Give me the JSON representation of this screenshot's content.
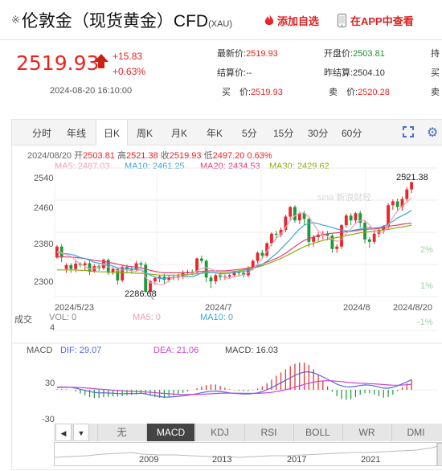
{
  "header": {
    "marker": "※",
    "title": "伦敦金（现货黄金）CFD",
    "symbol": "(XAU)",
    "favorite_label": "添加自选",
    "app_label": "在APP中查看"
  },
  "quote": {
    "price": "2519.93",
    "change": "+15.83",
    "change_pct": "+0.63%",
    "time": "2024-08-20 16:10:00",
    "fields": [
      {
        "label": "最新价:",
        "value": "2519.93"
      },
      {
        "label": "开盘价:",
        "value": "2503.81"
      },
      {
        "label": "持",
        "value": ""
      },
      {
        "label": "结算价:",
        "value": "--"
      },
      {
        "label": "昨结算:",
        "value": "2504.10"
      },
      {
        "label": "买",
        "value": ""
      },
      {
        "label": "买　价:",
        "value": "2519.93"
      },
      {
        "label": "卖　价:",
        "value": "2520.28"
      },
      {
        "label": "卖",
        "value": ""
      }
    ]
  },
  "tabs": [
    "分时",
    "年线",
    "日K",
    "周K",
    "月K",
    "年K",
    "5分",
    "15分",
    "30分",
    "60分"
  ],
  "active_tab": "日K",
  "info_bar": {
    "date": "2024/08/20",
    "open_label": "开",
    "open": "2503.81",
    "high_label": "高",
    "high": "2521.38",
    "close_label": "收",
    "close": "2519.93",
    "low_label": "低",
    "low": "2497.20",
    "pct": "0.63%"
  },
  "ma": [
    {
      "label": "MA5:",
      "value": "2487.03",
      "color": "#f0a0b4"
    },
    {
      "label": "MA10:",
      "value": "2461.25",
      "color": "#3aa8d8"
    },
    {
      "label": "MA20:",
      "value": "2434.53",
      "color": "#e0407a"
    },
    {
      "label": "MA30:",
      "value": "2429.62",
      "color": "#8faa10"
    }
  ],
  "price_axis": [
    "2540",
    "2460",
    "2380",
    "2300"
  ],
  "pct_axis": [
    "2%",
    "1%",
    "-1%"
  ],
  "x_axis": [
    "2024/5/23",
    "2024/7",
    "2024/8",
    "2024/8/20"
  ],
  "high_marker": "2521.38",
  "low_marker": "2286.68",
  "watermark": "sina 新浪财经",
  "volume": {
    "title": "成交",
    "axis_value": "4",
    "vol": "VOL: 0",
    "ma5": "MA5: 0",
    "ma10": "MA10: 0"
  },
  "macd": {
    "title": "MACD",
    "dif": "DIF: 29.07",
    "dea": "DEA: 21.06",
    "macd": "MACD: 16.03",
    "axis_top": "30",
    "axis_bottom": "-30",
    "dif_color": "#5566dd",
    "dea_color": "#cc44cc"
  },
  "indicator_prev": "◀",
  "indicator_next": "▼",
  "indicators": [
    "无",
    "MACD",
    "KDJ",
    "RSI",
    "BOLL",
    "WR",
    "DMI"
  ],
  "active_indicator": "MACD",
  "navigator_years": [
    "2009",
    "2013",
    "2017",
    "2021"
  ],
  "colors": {
    "up": "#e8262a",
    "down": "#1a9a38",
    "accent": "#4a6fc4"
  },
  "chart_data": {
    "type": "candlestick",
    "candles": [
      [
        2362,
        2385,
        2360,
        2388
      ],
      [
        2385,
        2362,
        2352,
        2390
      ],
      [
        2338,
        2346,
        2330,
        2350
      ],
      [
        2346,
        2338,
        2330,
        2350
      ],
      [
        2338,
        2349,
        2331,
        2355
      ],
      [
        2349,
        2346,
        2341,
        2352
      ],
      [
        2346,
        2350,
        2335,
        2355
      ],
      [
        2350,
        2332,
        2325,
        2355
      ],
      [
        2332,
        2344,
        2330,
        2348
      ],
      [
        2344,
        2340,
        2334,
        2348
      ],
      [
        2340,
        2357,
        2336,
        2360
      ],
      [
        2357,
        2330,
        2326,
        2360
      ],
      [
        2330,
        2338,
        2326,
        2342
      ],
      [
        2338,
        2314,
        2305,
        2340
      ],
      [
        2314,
        2342,
        2310,
        2345
      ],
      [
        2342,
        2337,
        2330,
        2347
      ],
      [
        2337,
        2336,
        2328,
        2342
      ],
      [
        2336,
        2350,
        2333,
        2355
      ],
      [
        2350,
        2347,
        2340,
        2354
      ],
      [
        2347,
        2290,
        2287,
        2352
      ],
      [
        2290,
        2312,
        2286,
        2316
      ],
      [
        2312,
        2319,
        2305,
        2322
      ],
      [
        2319,
        2322,
        2310,
        2325
      ],
      [
        2322,
        2315,
        2305,
        2328
      ],
      [
        2315,
        2321,
        2310,
        2325
      ],
      [
        2321,
        2320,
        2314,
        2326
      ],
      [
        2320,
        2323,
        2314,
        2328
      ],
      [
        2323,
        2330,
        2317,
        2335
      ],
      [
        2330,
        2332,
        2325,
        2336
      ],
      [
        2332,
        2331,
        2325,
        2337
      ],
      [
        2331,
        2360,
        2328,
        2362
      ],
      [
        2360,
        2355,
        2350,
        2366
      ],
      [
        2355,
        2320,
        2310,
        2358
      ],
      [
        2320,
        2312,
        2298,
        2325
      ],
      [
        2312,
        2325,
        2306,
        2328
      ],
      [
        2325,
        2321,
        2314,
        2329
      ],
      [
        2321,
        2322,
        2315,
        2326
      ],
      [
        2322,
        2325,
        2317,
        2328
      ],
      [
        2325,
        2331,
        2321,
        2334
      ],
      [
        2331,
        2330,
        2322,
        2334
      ],
      [
        2330,
        2325,
        2320,
        2336
      ],
      [
        2325,
        2340,
        2320,
        2344
      ],
      [
        2340,
        2355,
        2335,
        2358
      ],
      [
        2355,
        2372,
        2350,
        2375
      ],
      [
        2372,
        2366,
        2360,
        2378
      ],
      [
        2366,
        2392,
        2362,
        2394
      ],
      [
        2392,
        2412,
        2386,
        2415
      ],
      [
        2412,
        2410,
        2400,
        2418
      ],
      [
        2410,
        2420,
        2405,
        2425
      ],
      [
        2420,
        2448,
        2415,
        2452
      ],
      [
        2448,
        2468,
        2440,
        2470
      ],
      [
        2468,
        2440,
        2435,
        2472
      ],
      [
        2440,
        2455,
        2432,
        2458
      ],
      [
        2455,
        2443,
        2430,
        2460
      ],
      [
        2443,
        2395,
        2384,
        2448
      ],
      [
        2395,
        2405,
        2385,
        2410
      ],
      [
        2405,
        2410,
        2396,
        2415
      ],
      [
        2410,
        2412,
        2400,
        2418
      ],
      [
        2412,
        2408,
        2398,
        2418
      ],
      [
        2408,
        2380,
        2372,
        2412
      ],
      [
        2380,
        2385,
        2372,
        2390
      ],
      [
        2385,
        2430,
        2380,
        2432
      ],
      [
        2430,
        2450,
        2425,
        2454
      ],
      [
        2450,
        2440,
        2430,
        2455
      ],
      [
        2440,
        2455,
        2432,
        2458
      ],
      [
        2455,
        2435,
        2425,
        2460
      ],
      [
        2435,
        2400,
        2392,
        2440
      ],
      [
        2400,
        2395,
        2382,
        2405
      ],
      [
        2395,
        2412,
        2390,
        2418
      ],
      [
        2412,
        2420,
        2405,
        2424
      ],
      [
        2420,
        2428,
        2412,
        2430
      ],
      [
        2428,
        2472,
        2422,
        2476
      ],
      [
        2472,
        2480,
        2462,
        2484
      ],
      [
        2480,
        2468,
        2458,
        2486
      ],
      [
        2468,
        2485,
        2460,
        2490
      ],
      [
        2485,
        2505,
        2480,
        2510
      ],
      [
        2505,
        2520,
        2497,
        2521
      ]
    ],
    "ma5": [
      2374,
      2372,
      2368,
      2365,
      2356,
      2348,
      2344,
      2338,
      2339,
      2342,
      2348,
      2342,
      2340,
      2334,
      2336,
      2336,
      2334,
      2333,
      2337,
      2321,
      2309,
      2308,
      2305,
      2306,
      2314,
      2319,
      2321,
      2322,
      2325,
      2329,
      2334,
      2339,
      2341,
      2338,
      2334,
      2324,
      2320,
      2318,
      2322,
      2324,
      2326,
      2330,
      2338,
      2348,
      2360,
      2375,
      2390,
      2402,
      2412,
      2425,
      2440,
      2450,
      2455,
      2456,
      2447,
      2432,
      2418,
      2410,
      2406,
      2400,
      2396,
      2400,
      2412,
      2422,
      2434,
      2440,
      2440,
      2430,
      2420,
      2415,
      2415,
      2430,
      2446,
      2460,
      2470,
      2478,
      2487
    ],
    "ma10": [
      2372,
      2371,
      2370,
      2369,
      2366,
      2362,
      2360,
      2356,
      2352,
      2350,
      2350,
      2347,
      2344,
      2340,
      2340,
      2339,
      2338,
      2338,
      2336,
      2331,
      2325,
      2321,
      2318,
      2318,
      2320,
      2320,
      2321,
      2322,
      2322,
      2322,
      2325,
      2330,
      2332,
      2330,
      2330,
      2328,
      2328,
      2329,
      2331,
      2332,
      2333,
      2335,
      2338,
      2343,
      2348,
      2354,
      2362,
      2370,
      2380,
      2390,
      2400,
      2412,
      2422,
      2430,
      2434,
      2435,
      2433,
      2430,
      2428,
      2425,
      2422,
      2420,
      2418,
      2418,
      2420,
      2422,
      2425,
      2425,
      2424,
      2425,
      2428,
      2432,
      2438,
      2445,
      2450,
      2455,
      2461
    ],
    "ma20": [
      2364,
      2364,
      2363,
      2363,
      2362,
      2361,
      2360,
      2358,
      2356,
      2355,
      2354,
      2352,
      2350,
      2348,
      2346,
      2344,
      2343,
      2342,
      2340,
      2338,
      2335,
      2333,
      2331,
      2330,
      2330,
      2330,
      2330,
      2330,
      2330,
      2331,
      2332,
      2333,
      2334,
      2334,
      2334,
      2334,
      2334,
      2335,
      2336,
      2337,
      2338,
      2340,
      2342,
      2345,
      2348,
      2352,
      2356,
      2360,
      2365,
      2371,
      2378,
      2385,
      2392,
      2398,
      2402,
      2405,
      2408,
      2410,
      2412,
      2413,
      2414,
      2415,
      2416,
      2417,
      2418,
      2420,
      2421,
      2422,
      2422,
      2423,
      2425,
      2427,
      2429,
      2430,
      2432,
      2433,
      2434
    ],
    "ma30": [
      2336,
      2336,
      2336,
      2336,
      2336,
      2335,
      2335,
      2334,
      2333,
      2332,
      2332,
      2332,
      2331,
      2331,
      2330,
      2330,
      2330,
      2329,
      2329,
      2328,
      2327,
      2326,
      2325,
      2325,
      2325,
      2325,
      2325,
      2326,
      2326,
      2327,
      2328,
      2329,
      2330,
      2330,
      2330,
      2330,
      2331,
      2332,
      2333,
      2334,
      2336,
      2338,
      2340,
      2342,
      2345,
      2348,
      2352,
      2356,
      2360,
      2365,
      2370,
      2375,
      2380,
      2385,
      2389,
      2392,
      2395,
      2398,
      2400,
      2402,
      2404,
      2406,
      2408,
      2410,
      2412,
      2414,
      2415,
      2416,
      2417,
      2418,
      2420,
      2421,
      2423,
      2425,
      2426,
      2428,
      2430
    ],
    "y_range": [
      2280,
      2550
    ]
  }
}
